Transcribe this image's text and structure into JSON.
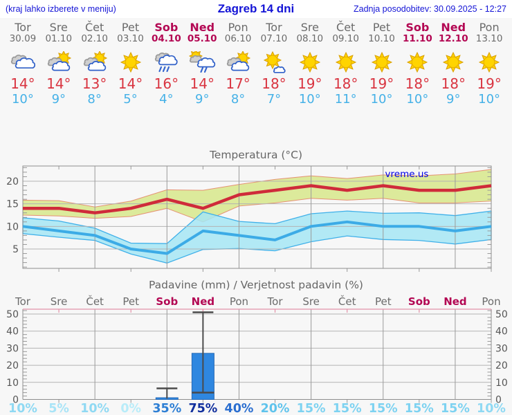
{
  "header": {
    "left": "(kraj lahko izberete v meniju)",
    "title": "Zagreb 14 dni",
    "right": "Zadnja posodobitev: 30.09.2025 - 12:27"
  },
  "colors": {
    "header_text": "#1414d6",
    "weekday_text": "#6b6b6b",
    "weekend_text": "#b30753",
    "high_temp_text": "#d93440",
    "low_temp_text": "#45b1e7",
    "chart_title": "#666666",
    "axis_label": "#555555",
    "grid": "#b3b3b3",
    "border": "#8e8e8e",
    "temp_band_high_fill": "#dcea9b",
    "temp_band_high_edge": "#e59273",
    "temp_band_low_fill": "#a6e6f4",
    "temp_band_low_edge": "#3fb0e9",
    "temp_line_high": "#cf2b3a",
    "temp_line_low": "#3cabe6",
    "bar_fill": "#2f87e0",
    "bar_edge": "#2569b5",
    "whisker": "#4a4a4a",
    "precip_top_axis": "#e291a8",
    "watermark": "#0000e6"
  },
  "days": [
    {
      "name": "Tor",
      "date": "30.09",
      "weekend": false,
      "icon": "cloudy",
      "high": "14°",
      "low": "10°",
      "prob": "10%",
      "prob_color": "#8fd9f3"
    },
    {
      "name": "Sre",
      "date": "01.10",
      "weekend": false,
      "icon": "partly-sunny",
      "high": "14°",
      "low": "9°",
      "prob": "5%",
      "prob_color": "#a8e4f7"
    },
    {
      "name": "Čet",
      "date": "02.10",
      "weekend": false,
      "icon": "partly-sunny",
      "high": "13°",
      "low": "8°",
      "prob": "10%",
      "prob_color": "#8fd9f3"
    },
    {
      "name": "Pet",
      "date": "03.10",
      "weekend": false,
      "icon": "sunny",
      "high": "14°",
      "low": "5°",
      "prob": "0%",
      "prob_color": "#b8ecf9"
    },
    {
      "name": "Sob",
      "date": "04.10",
      "weekend": true,
      "icon": "rain",
      "high": "16°",
      "low": "4°",
      "prob": "35%",
      "prob_color": "#2e7fd4"
    },
    {
      "name": "Ned",
      "date": "05.10",
      "weekend": true,
      "icon": "sun-shower",
      "high": "14°",
      "low": "9°",
      "prob": "75%",
      "prob_color": "#12309e"
    },
    {
      "name": "Pon",
      "date": "06.10",
      "weekend": false,
      "icon": "partly-sunny",
      "high": "17°",
      "low": "8°",
      "prob": "40%",
      "prob_color": "#2a6ed0"
    },
    {
      "name": "Tor",
      "date": "07.10",
      "weekend": false,
      "icon": "mostly-sunny",
      "high": "18°",
      "low": "7°",
      "prob": "20%",
      "prob_color": "#5fc3ec"
    },
    {
      "name": "Sre",
      "date": "08.10",
      "weekend": false,
      "icon": "sunny",
      "high": "19°",
      "low": "10°",
      "prob": "15%",
      "prob_color": "#7dd2f1"
    },
    {
      "name": "Čet",
      "date": "09.10",
      "weekend": false,
      "icon": "sunny",
      "high": "18°",
      "low": "11°",
      "prob": "15%",
      "prob_color": "#7dd2f1"
    },
    {
      "name": "Pet",
      "date": "10.10",
      "weekend": false,
      "icon": "sunny",
      "high": "19°",
      "low": "10°",
      "prob": "15%",
      "prob_color": "#7dd2f1"
    },
    {
      "name": "Sob",
      "date": "11.10",
      "weekend": true,
      "icon": "sunny",
      "high": "18°",
      "low": "10°",
      "prob": "15%",
      "prob_color": "#7dd2f1"
    },
    {
      "name": "Ned",
      "date": "12.10",
      "weekend": true,
      "icon": "sunny",
      "high": "18°",
      "low": "9°",
      "prob": "15%",
      "prob_color": "#7dd2f1"
    },
    {
      "name": "Pon",
      "date": "13.10",
      "weekend": false,
      "icon": "sunny",
      "high": "19°",
      "low": "10°",
      "prob": "10%",
      "prob_color": "#8fd9f3"
    }
  ],
  "chart_data": [
    {
      "type": "line",
      "title": "Temperatura (°C)",
      "watermark": "vreme.us",
      "categories": [
        "Tor 30.09",
        "Sre 01.10",
        "Čet 02.10",
        "Pet 03.10",
        "Sob 04.10",
        "Ned 05.10",
        "Pon 06.10",
        "Tor 07.10",
        "Sre 08.10",
        "Čet 09.10",
        "Pet 10.10",
        "Sob 11.10",
        "Ned 12.10",
        "Pon 13.10"
      ],
      "ylabel": "°C",
      "yticks": [
        5,
        10,
        15,
        20
      ],
      "ylim": [
        1,
        23.4
      ],
      "grid": true,
      "series": [
        {
          "name": "high",
          "values": [
            14,
            14,
            13,
            14,
            16,
            14,
            17,
            18,
            19,
            18,
            19,
            18,
            18,
            19
          ]
        },
        {
          "name": "high_band_max",
          "values": [
            15.8,
            15.7,
            14.3,
            15.6,
            18.1,
            18.0,
            19.3,
            20.4,
            21.2,
            20.6,
            21.4,
            21.2,
            21.6,
            22.6
          ]
        },
        {
          "name": "high_band_min",
          "values": [
            12.5,
            12.3,
            11.8,
            12.2,
            14.0,
            11.0,
            14.5,
            15.2,
            16.2,
            15.8,
            16.2,
            15.2,
            15.2,
            15.6
          ]
        },
        {
          "name": "low",
          "values": [
            10,
            9,
            8,
            5,
            4,
            9,
            8,
            7,
            10,
            11,
            10,
            10,
            9,
            10
          ]
        },
        {
          "name": "low_band_max",
          "values": [
            11.9,
            11.2,
            9.6,
            6.3,
            6.2,
            13.2,
            11.1,
            10.6,
            12.8,
            13.4,
            12.9,
            13.0,
            12.4,
            13.4
          ]
        },
        {
          "name": "low_band_min",
          "values": [
            8.4,
            7.6,
            6.9,
            3.9,
            1.9,
            4.9,
            5.1,
            4.6,
            6.6,
            7.9,
            7.1,
            6.9,
            6.1,
            7.1
          ]
        }
      ]
    },
    {
      "type": "bar",
      "title": "Padavine (mm) / Verjetnost padavin (%)",
      "categories": [
        "Tor",
        "Sre",
        "Čet",
        "Pet",
        "Sob",
        "Ned",
        "Pon",
        "Tor",
        "Sre",
        "Čet",
        "Pet",
        "Sob",
        "Ned",
        "Pon"
      ],
      "ylabel": "mm",
      "yticks": [
        0,
        10,
        20,
        30,
        40,
        50
      ],
      "ylim": [
        0,
        52.8
      ],
      "grid": true,
      "values": [
        0,
        0,
        0,
        0,
        1,
        27,
        0,
        0,
        0,
        0,
        0,
        0,
        0,
        0
      ],
      "whiskers": [
        {
          "day": 4,
          "low": 0,
          "high": 6.5
        },
        {
          "day": 5,
          "low": 4,
          "high": 51
        }
      ],
      "probabilities_percent": [
        10,
        5,
        10,
        0,
        35,
        75,
        40,
        20,
        15,
        15,
        15,
        15,
        15,
        10
      ]
    }
  ]
}
